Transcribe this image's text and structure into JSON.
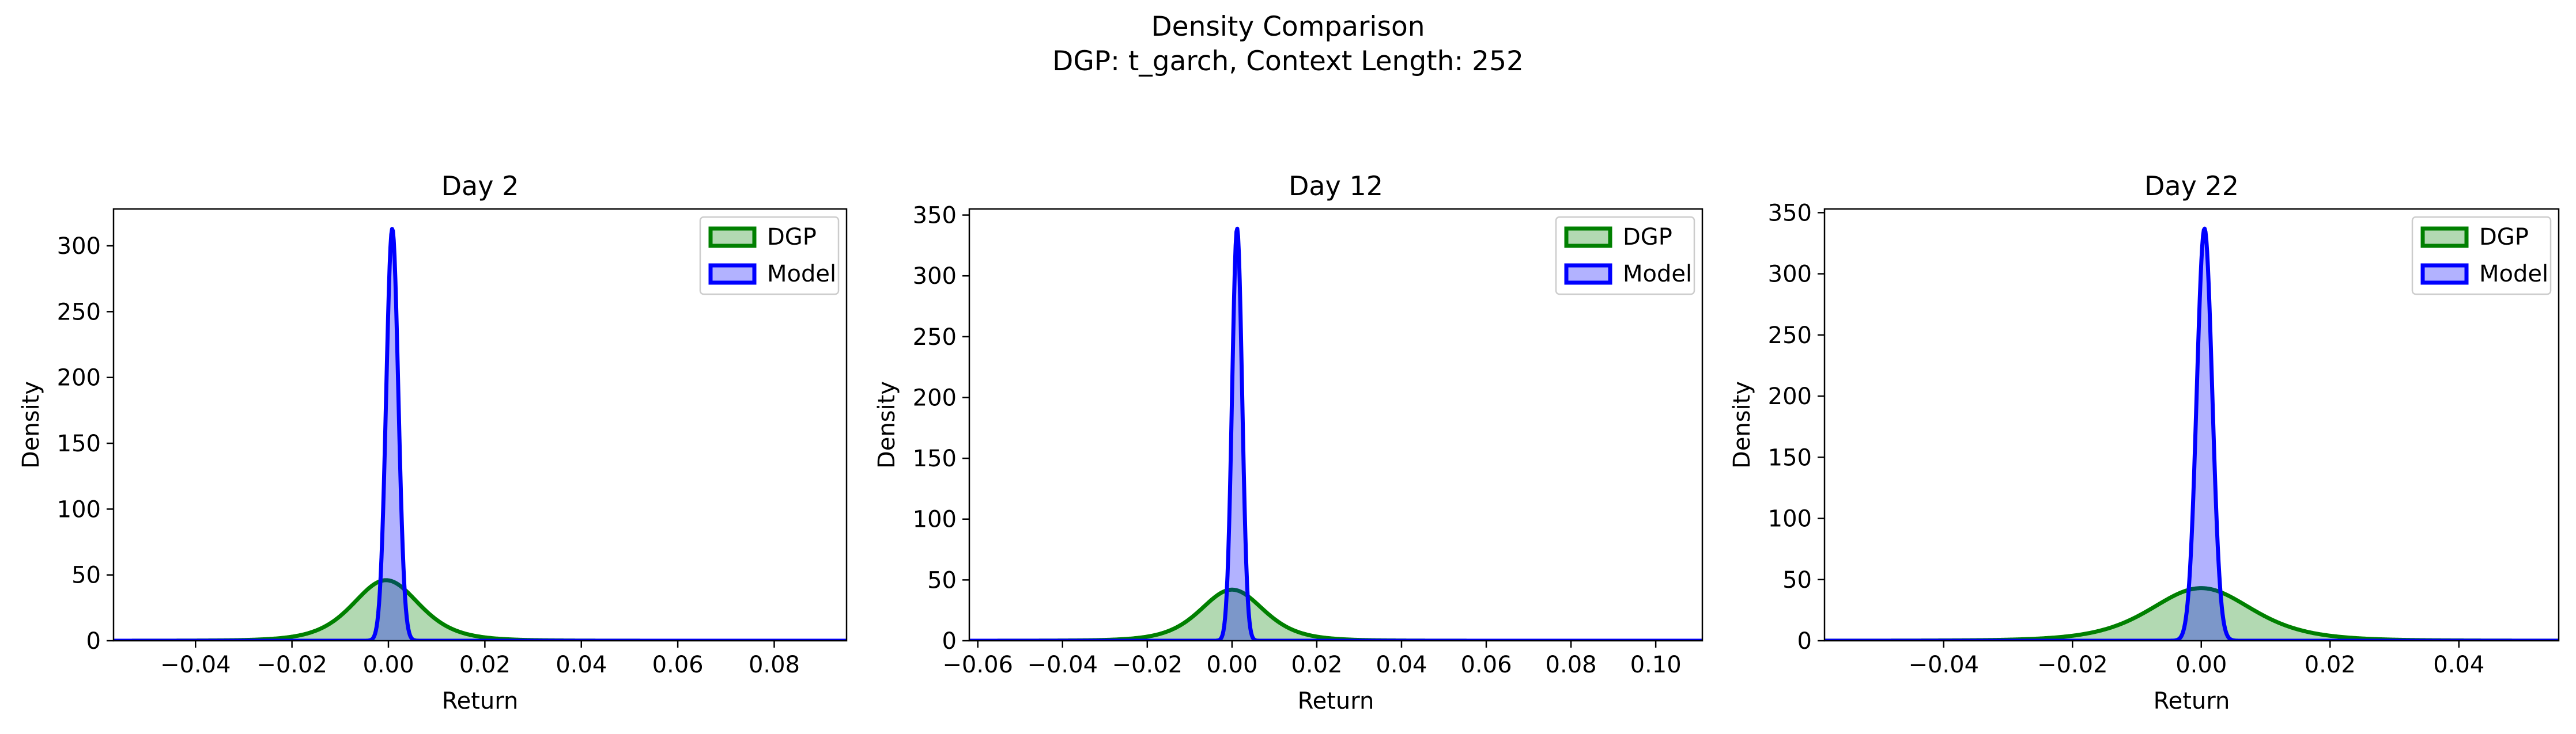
{
  "figure": {
    "title_line1": "Density Comparison",
    "title_line2": "DGP: t_garch, Context Length: 252"
  },
  "colors": {
    "dgp": "#008000",
    "model": "#0000ff",
    "axis": "#000000"
  },
  "chart_data": [
    {
      "type": "area",
      "title": "Day 2",
      "xlabel": "Return",
      "ylabel": "Density",
      "xlim": [
        -0.057,
        0.095
      ],
      "ylim": [
        0,
        328
      ],
      "xticks": [
        -0.04,
        -0.02,
        0.0,
        0.02,
        0.04,
        0.06,
        0.08
      ],
      "xtick_labels": [
        "−0.04",
        "−0.02",
        "0.00",
        "0.02",
        "0.04",
        "0.06",
        "0.08"
      ],
      "yticks": [
        0,
        50,
        100,
        150,
        200,
        250,
        300
      ],
      "ytick_labels": [
        "0",
        "50",
        "100",
        "150",
        "200",
        "250",
        "300"
      ],
      "legend_position": "top-right",
      "series": [
        {
          "name": "DGP",
          "color_key": "dgp",
          "peak_x": -0.0005,
          "peak_density": 46,
          "scale": 0.0072,
          "t_df": 5
        },
        {
          "name": "Model",
          "color_key": "model",
          "peak_x": 0.0008,
          "peak_density": 313,
          "scale": 0.00125
        }
      ]
    },
    {
      "type": "area",
      "title": "Day 12",
      "xlabel": "Return",
      "ylabel": "Density",
      "xlim": [
        -0.062,
        0.111
      ],
      "ylim": [
        0,
        355
      ],
      "xticks": [
        -0.06,
        -0.04,
        -0.02,
        0.0,
        0.02,
        0.04,
        0.06,
        0.08,
        0.1
      ],
      "xtick_labels": [
        "−0.06",
        "−0.04",
        "−0.02",
        "0.00",
        "0.02",
        "0.04",
        "0.06",
        "0.08",
        "0.10"
      ],
      "yticks": [
        0,
        50,
        100,
        150,
        200,
        250,
        300,
        350
      ],
      "ytick_labels": [
        "0",
        "50",
        "100",
        "150",
        "200",
        "250",
        "300",
        "350"
      ],
      "legend_position": "top-right",
      "series": [
        {
          "name": "DGP",
          "color_key": "dgp",
          "peak_x": 0.0,
          "peak_density": 42,
          "scale": 0.0078,
          "t_df": 5
        },
        {
          "name": "Model",
          "color_key": "model",
          "peak_x": 0.0012,
          "peak_density": 339,
          "scale": 0.00118
        }
      ]
    },
    {
      "type": "area",
      "title": "Day 22",
      "xlabel": "Return",
      "ylabel": "Density",
      "xlim": [
        -0.0585,
        0.0555
      ],
      "ylim": [
        0,
        353
      ],
      "xticks": [
        -0.04,
        -0.02,
        0.0,
        0.02,
        0.04
      ],
      "xtick_labels": [
        "−0.04",
        "−0.02",
        "0.00",
        "0.02",
        "0.04"
      ],
      "yticks": [
        0,
        50,
        100,
        150,
        200,
        250,
        300,
        350
      ],
      "ytick_labels": [
        "0",
        "50",
        "100",
        "150",
        "200",
        "250",
        "300",
        "350"
      ],
      "legend_position": "top-right",
      "series": [
        {
          "name": "DGP",
          "color_key": "dgp",
          "peak_x": 0.0,
          "peak_density": 43,
          "scale": 0.0082,
          "t_df": 5
        },
        {
          "name": "Model",
          "color_key": "model",
          "peak_x": 0.0005,
          "peak_density": 337,
          "scale": 0.0012
        }
      ]
    }
  ]
}
